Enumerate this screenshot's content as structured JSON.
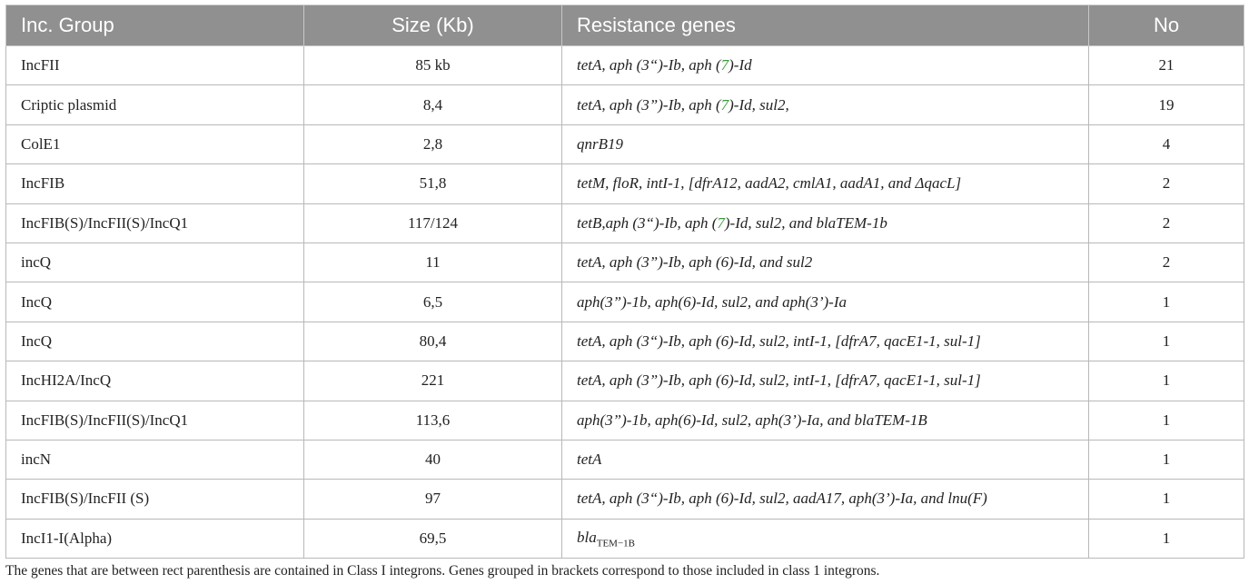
{
  "table": {
    "headers": [
      "Inc. Group",
      "Size (Kb)",
      "Resistance genes",
      "No"
    ],
    "rows": [
      {
        "group": "IncFII",
        "size": "85 kb",
        "genes_parts": [
          "tetA, aph (3“)-Ib, aph (",
          "7",
          ")-Id"
        ],
        "no": "21"
      },
      {
        "group": "Criptic plasmid",
        "size": "8,4",
        "genes_parts": [
          "tetA, aph (3”)-Ib, aph (",
          "7",
          ")-Id, sul2,"
        ],
        "no": "19"
      },
      {
        "group": "ColE1",
        "size": "2,8",
        "genes": "qnrB19",
        "no": "4"
      },
      {
        "group": "IncFIB",
        "size": "51,8",
        "genes": "tetM, floR, intI-1, [dfrA12, aadA2, cmlA1, aadA1, and ΔqacL]",
        "no": "2"
      },
      {
        "group": "IncFIB(S)/IncFII(S)/IncQ1",
        "size": "117/124",
        "genes_parts": [
          "tetB,aph (3“)-Ib, aph (",
          "7",
          ")-Id, sul2, and blaTEM-1b"
        ],
        "no": "2"
      },
      {
        "group": "incQ",
        "size": "11",
        "genes": "tetA, aph (3”)-Ib, aph (6)-Id, and sul2",
        "no": "2"
      },
      {
        "group": "IncQ",
        "size": "6,5",
        "genes": "aph(3”)-1b, aph(6)-Id, sul2, and aph(3’)-Ia",
        "no": "1"
      },
      {
        "group": "IncQ",
        "size": "80,4",
        "genes": "tetA, aph (3“)-Ib, aph (6)-Id, sul2, intI-1, [dfrA7, qacE1-1, sul-1]",
        "no": "1"
      },
      {
        "group": "IncHI2A/IncQ",
        "size": "221",
        "genes": "tetA, aph (3”)-Ib, aph (6)-Id, sul2, intI-1, [dfrA7, qacE1-1, sul-1]",
        "no": "1"
      },
      {
        "group": "IncFIB(S)/IncFII(S)/IncQ1",
        "size": "113,6",
        "genes": "aph(3”)-1b, aph(6)-Id, sul2, aph(3’)-Ia, and blaTEM-1B",
        "no": "1"
      },
      {
        "group": "incN",
        "size": "40",
        "genes": "tetA",
        "no": "1"
      },
      {
        "group": "IncFIB(S)/IncFII (S)",
        "size": "97",
        "genes": "tetA, aph (3“)-Ib, aph (6)-Id, sul2, aadA17, aph(3’)-Ia, and lnu(F)",
        "no": "1"
      },
      {
        "group": "IncI1-I(Alpha)",
        "size": "69,5",
        "genes_base": "bla",
        "genes_sub": "TEM−1B",
        "no": "1"
      }
    ]
  },
  "footnote": "The genes that are between rect parenthesis are contained in Class I integrons. Genes grouped in brackets correspond to those included in class 1 integrons.",
  "colors": {
    "header_bg": "#909090",
    "highlight_green": "#3a9a3a"
  }
}
